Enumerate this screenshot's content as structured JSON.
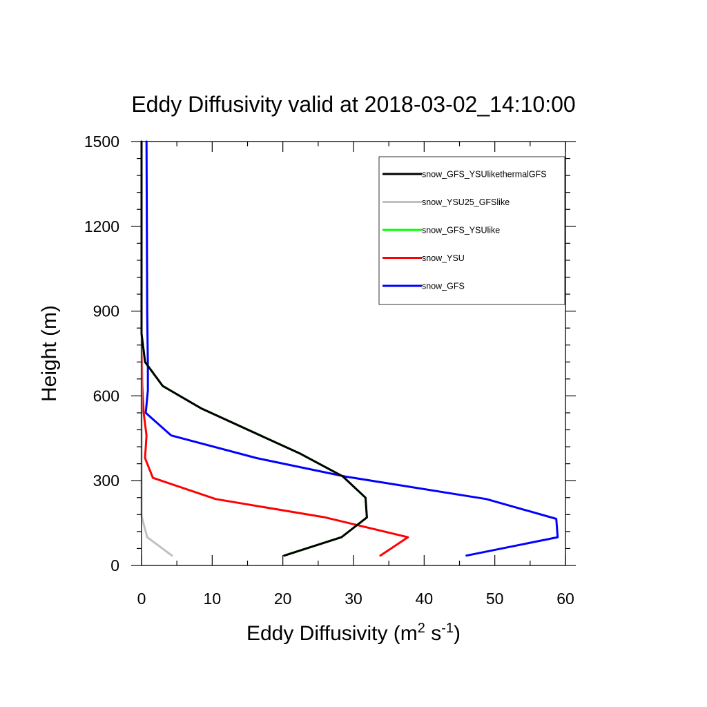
{
  "chart_data": {
    "type": "line",
    "title": "Eddy Diffusivity valid at 2018-03-02_14:10:00",
    "xlabel": {
      "main": "Eddy Diffusivity (m",
      "sup1": "2",
      "mid": " s",
      "sup2": "-1",
      "end": ")"
    },
    "ylabel": "Height (m)",
    "xlim": [
      0,
      60
    ],
    "ylim": [
      0,
      1500
    ],
    "x_ticks": [
      0,
      10,
      20,
      30,
      40,
      50,
      60
    ],
    "x_tick_labels": [
      "0",
      "10",
      "20",
      "30",
      "40",
      "50",
      "60"
    ],
    "y_ticks": [
      0,
      300,
      600,
      900,
      1200,
      1500
    ],
    "y_tick_labels": [
      "0",
      "300",
      "600",
      "900",
      "1200",
      "1500"
    ],
    "grid": false,
    "legend_position": "top-right",
    "series": [
      {
        "name": "snow_GFS_YSUlikethermalGFS",
        "color": "#000000",
        "points": [
          [
            20.2,
            35
          ],
          [
            28.3,
            100
          ],
          [
            31.9,
            170
          ],
          [
            31.7,
            240
          ],
          [
            28.5,
            315
          ],
          [
            22.5,
            395
          ],
          [
            8.5,
            555
          ],
          [
            3.0,
            635
          ],
          [
            0.5,
            720
          ],
          [
            0.0,
            820
          ],
          [
            0.0,
            1500
          ]
        ]
      },
      {
        "name": "snow_YSU25_GFSlike",
        "color": "#c0c0c0",
        "points": [
          [
            4.3,
            35
          ],
          [
            0.8,
            100
          ],
          [
            0.0,
            175
          ],
          [
            0.0,
            1500
          ]
        ]
      },
      {
        "name": "snow_GFS_YSUlike",
        "color": "#00ff00",
        "points": [
          [
            20.2,
            35
          ],
          [
            28.3,
            100
          ],
          [
            31.9,
            170
          ],
          [
            31.7,
            240
          ],
          [
            28.5,
            315
          ],
          [
            22.5,
            395
          ],
          [
            8.5,
            555
          ],
          [
            3.0,
            635
          ],
          [
            0.5,
            720
          ],
          [
            0.0,
            820
          ],
          [
            0.0,
            1500
          ]
        ]
      },
      {
        "name": "snow_YSU",
        "color": "#ff0000",
        "points": [
          [
            33.8,
            35
          ],
          [
            37.7,
            100
          ],
          [
            26.0,
            170
          ],
          [
            10.5,
            235
          ],
          [
            1.6,
            310
          ],
          [
            0.5,
            380
          ],
          [
            0.7,
            460
          ],
          [
            0.3,
            540
          ],
          [
            0.1,
            640
          ],
          [
            0.0,
            800
          ],
          [
            0.0,
            1500
          ]
        ]
      },
      {
        "name": "snow_GFS",
        "color": "#0000ff",
        "points": [
          [
            46.0,
            35
          ],
          [
            58.9,
            100
          ],
          [
            58.7,
            165
          ],
          [
            48.8,
            235
          ],
          [
            28.8,
            315
          ],
          [
            16.3,
            380
          ],
          [
            4.2,
            460
          ],
          [
            0.6,
            540
          ],
          [
            0.9,
            620
          ],
          [
            0.9,
            700
          ],
          [
            0.8,
            900
          ],
          [
            0.7,
            1500
          ]
        ]
      }
    ]
  }
}
